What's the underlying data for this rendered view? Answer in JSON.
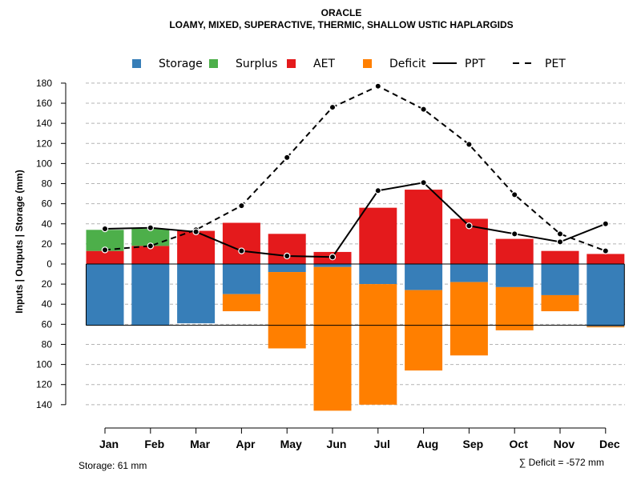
{
  "chart_data": {
    "type": "bar",
    "title": "ORACLE",
    "subtitle": "LOAMY, MIXED, SUPERACTIVE, THERMIC, SHALLOW USTIC HAPLARGIDS",
    "ylabel": "Inputs | Outputs | Storage    (mm)",
    "ylim": [
      -150,
      180
    ],
    "y_ticks": [
      180,
      160,
      140,
      120,
      100,
      80,
      60,
      40,
      20,
      0,
      -20,
      -40,
      -60,
      -80,
      -100,
      -120,
      -140
    ],
    "y_tick_labels": [
      "180",
      "160",
      "140",
      "120",
      "100",
      "80",
      "60",
      "40",
      "20",
      "0",
      "20",
      "40",
      "60",
      "80",
      "100",
      "120",
      "140"
    ],
    "grid": true,
    "legend_position": "top",
    "categories": [
      "Jan",
      "Feb",
      "Mar",
      "Apr",
      "May",
      "Jun",
      "Jul",
      "Aug",
      "Sep",
      "Oct",
      "Nov",
      "Dec"
    ],
    "legend": [
      {
        "label": "Storage",
        "kind": "box",
        "color": "#377EB8"
      },
      {
        "label": "Surplus",
        "kind": "box",
        "color": "#4DAF4A"
      },
      {
        "label": "AET",
        "kind": "box",
        "color": "#E41A1C"
      },
      {
        "label": "Deficit",
        "kind": "box",
        "color": "#FF7F00"
      },
      {
        "label": "PPT",
        "kind": "solid",
        "color": "#000000"
      },
      {
        "label": "PET",
        "kind": "dashed",
        "color": "#000000"
      }
    ],
    "series": [
      {
        "name": "AET",
        "color": "#E41A1C",
        "values": [
          13,
          18,
          33,
          41,
          30,
          12,
          56,
          74,
          45,
          25,
          13,
          10
        ]
      },
      {
        "name": "Surplus",
        "color": "#4DAF4A",
        "values": [
          21,
          17,
          0,
          0,
          0,
          0,
          0,
          0,
          0,
          0,
          0,
          0
        ]
      },
      {
        "name": "Storage",
        "color": "#377EB8",
        "values": [
          61,
          61,
          59,
          30,
          8,
          3,
          20,
          26,
          18,
          23,
          31,
          62
        ]
      },
      {
        "name": "Deficit",
        "color": "#FF7F00",
        "values": [
          0,
          0,
          0,
          17,
          76,
          143,
          120,
          80,
          73,
          43,
          16,
          1
        ]
      },
      {
        "name": "PPT",
        "color": "#000000",
        "line": "solid",
        "values": [
          35,
          36,
          32,
          13,
          8,
          7,
          73,
          81,
          38,
          30,
          22,
          40
        ]
      },
      {
        "name": "PET",
        "color": "#000000",
        "line": "dashed",
        "values": [
          14,
          18,
          34,
          58,
          106,
          156,
          177,
          154,
          119,
          69,
          30,
          13
        ]
      }
    ],
    "storage_capacity": 61,
    "footnote_left": "Storage: 61 mm",
    "footnote_right": "∑ Deficit = -572 mm"
  }
}
